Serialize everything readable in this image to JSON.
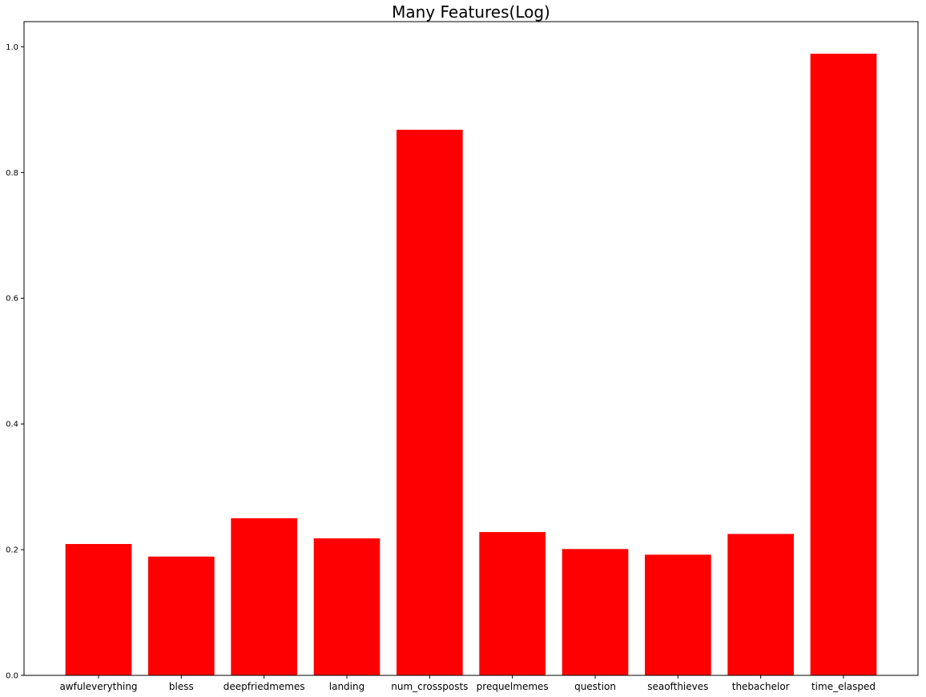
{
  "chart_data": {
    "type": "bar",
    "title": "Many Features(Log)",
    "xlabel": "",
    "ylabel": "",
    "categories": [
      "awfuleverything",
      "bless",
      "deepfriedmemes",
      "landing",
      "num_crossposts",
      "prequelmemes",
      "question",
      "seaofthieves",
      "thebachelor",
      "time_elasped"
    ],
    "values": [
      0.209,
      0.189,
      0.25,
      0.218,
      0.868,
      0.228,
      0.201,
      0.192,
      0.225,
      0.989
    ],
    "ylim": [
      0,
      1.04
    ],
    "yticks": [
      "0.0",
      "0.2",
      "0.4",
      "0.6",
      "0.8",
      "1.0"
    ],
    "bar_color": "#ff0000",
    "grid": false
  }
}
